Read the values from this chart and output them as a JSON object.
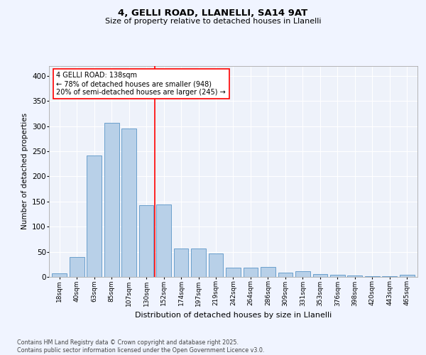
{
  "title1": "4, GELLI ROAD, LLANELLI, SA14 9AT",
  "title2": "Size of property relative to detached houses in Llanelli",
  "xlabel": "Distribution of detached houses by size in Llanelli",
  "ylabel": "Number of detached properties",
  "categories": [
    "18sqm",
    "40sqm",
    "63sqm",
    "85sqm",
    "107sqm",
    "130sqm",
    "152sqm",
    "174sqm",
    "197sqm",
    "219sqm",
    "242sqm",
    "264sqm",
    "286sqm",
    "309sqm",
    "331sqm",
    "353sqm",
    "376sqm",
    "398sqm",
    "420sqm",
    "443sqm",
    "465sqm"
  ],
  "values": [
    7,
    39,
    242,
    307,
    295,
    143,
    144,
    57,
    57,
    47,
    19,
    19,
    20,
    9,
    11,
    6,
    4,
    3,
    2,
    1,
    4
  ],
  "bar_color": "#b8d0e8",
  "bar_edge_color": "#6aa0cc",
  "vline_x": 5.5,
  "vline_color": "red",
  "annotation_text": "4 GELLI ROAD: 138sqm\n← 78% of detached houses are smaller (948)\n20% of semi-detached houses are larger (245) →",
  "annotation_box_color": "white",
  "annotation_box_edge": "red",
  "ylim": [
    0,
    420
  ],
  "yticks": [
    0,
    50,
    100,
    150,
    200,
    250,
    300,
    350,
    400
  ],
  "footer": "Contains HM Land Registry data © Crown copyright and database right 2025.\nContains public sector information licensed under the Open Government Licence v3.0.",
  "bg_color": "#f0f4ff",
  "plot_bg_color": "#eef2fa"
}
